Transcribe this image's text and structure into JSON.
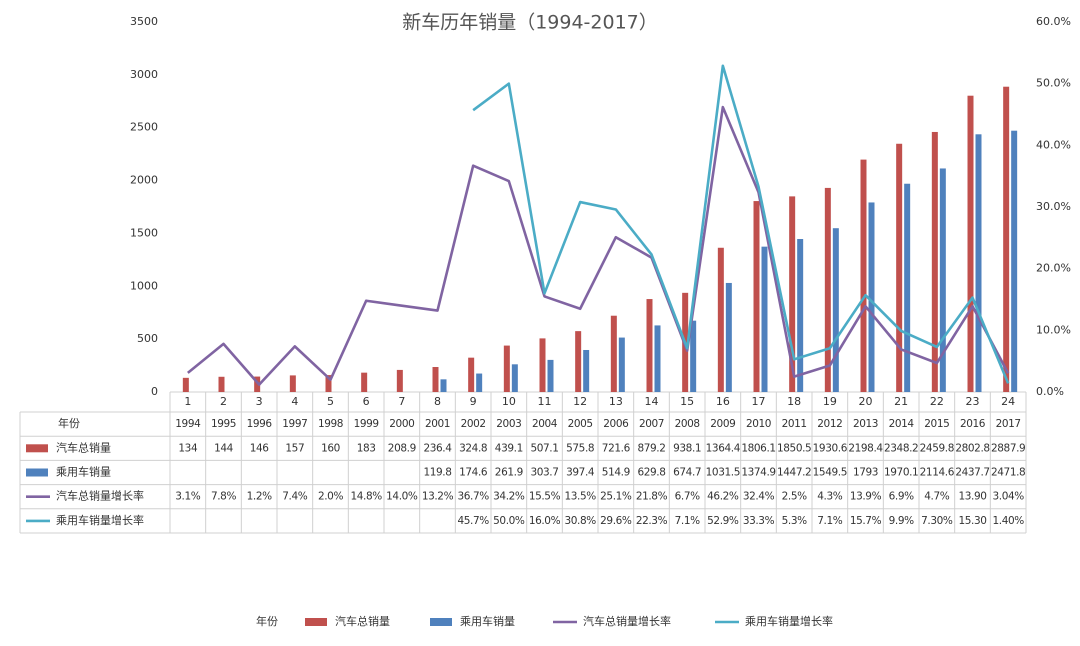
{
  "chart_data": {
    "type": "bar",
    "title": "新车历年销量（1994-2017）",
    "categories": [
      1,
      2,
      3,
      4,
      5,
      6,
      7,
      8,
      9,
      10,
      11,
      12,
      13,
      14,
      15,
      16,
      17,
      18,
      19,
      20,
      21,
      22,
      23,
      24
    ],
    "ylim": [
      0,
      3500
    ],
    "yticks": [
      0,
      500,
      1000,
      1500,
      2000,
      2500,
      3000,
      3500
    ],
    "y2lim": [
      0,
      60
    ],
    "y2ticks": [
      {
        "value": 0,
        "label": "0.0%"
      },
      {
        "value": 10,
        "label": "10.0%"
      },
      {
        "value": 20,
        "label": "20.0%"
      },
      {
        "value": 30,
        "label": "30.0%"
      },
      {
        "value": 40,
        "label": "40.0%"
      },
      {
        "value": 50,
        "label": "50.0%"
      },
      {
        "value": 60,
        "label": "60.0%"
      }
    ],
    "series": [
      {
        "name": "年份",
        "values": [
          1994,
          1995,
          1996,
          1997,
          1998,
          1999,
          2000,
          2001,
          2002,
          2003,
          2004,
          2005,
          2006,
          2007,
          2008,
          2009,
          2010,
          2011,
          2012,
          2013,
          2014,
          2015,
          2016,
          2017
        ]
      },
      {
        "name": "汽车总销量",
        "type": "bar",
        "color": "#c0504d",
        "values": [
          134,
          144,
          146,
          157,
          160,
          183,
          208.9,
          236.4,
          324.8,
          439.1,
          507.1,
          575.8,
          721.6,
          879.2,
          938.1,
          1364.4,
          1806.1,
          1850.5,
          1930.6,
          2198.4,
          2348.2,
          2459.8,
          2802.8,
          2887.9
        ]
      },
      {
        "name": "乘用车销量",
        "type": "bar",
        "color": "#4f81bd",
        "values": [
          null,
          null,
          null,
          null,
          null,
          null,
          null,
          119.8,
          174.6,
          261.9,
          303.7,
          397.4,
          514.9,
          629.8,
          674.7,
          1031.5,
          1374.9,
          1447.2,
          1549.5,
          1793,
          1970.1,
          2114.6,
          2437.7,
          2471.8
        ]
      },
      {
        "name": "汽车总销量增长率",
        "type": "line",
        "axis": "y2",
        "color": "#8064a2",
        "values": [
          3.1,
          7.8,
          1.2,
          7.4,
          2.0,
          14.8,
          14.0,
          13.2,
          36.7,
          34.2,
          15.5,
          13.5,
          25.1,
          21.8,
          6.7,
          46.2,
          32.4,
          2.5,
          4.3,
          13.9,
          6.9,
          4.7,
          13.9,
          3.04
        ],
        "value_labels": [
          "3.1%",
          "7.8%",
          "1.2%",
          "7.4%",
          "2.0%",
          "14.8%",
          "14.0%",
          "13.2%",
          "36.7%",
          "34.2%",
          "15.5%",
          "13.5%",
          "25.1%",
          "21.8%",
          "6.7%",
          "46.2%",
          "32.4%",
          "2.5%",
          "4.3%",
          "13.9%",
          "6.9%",
          "4.7%",
          "13.90",
          "3.04%"
        ]
      },
      {
        "name": "乘用车销量增长率",
        "type": "line",
        "axis": "y2",
        "color": "#4bacc6",
        "values": [
          null,
          null,
          null,
          null,
          null,
          null,
          null,
          null,
          45.7,
          50.0,
          16.0,
          30.8,
          29.6,
          22.3,
          7.1,
          52.9,
          33.3,
          5.3,
          7.1,
          15.7,
          9.9,
          7.3,
          15.3,
          1.4
        ],
        "value_labels": [
          null,
          null,
          null,
          null,
          null,
          null,
          null,
          null,
          "45.7%",
          "50.0%",
          "16.0%",
          "30.8%",
          "29.6%",
          "22.3%",
          "7.1%",
          "52.9%",
          "33.3%",
          "5.3%",
          "7.1%",
          "15.7%",
          "9.9%",
          "7.30%",
          "15.30",
          "1.40%"
        ]
      }
    ]
  }
}
